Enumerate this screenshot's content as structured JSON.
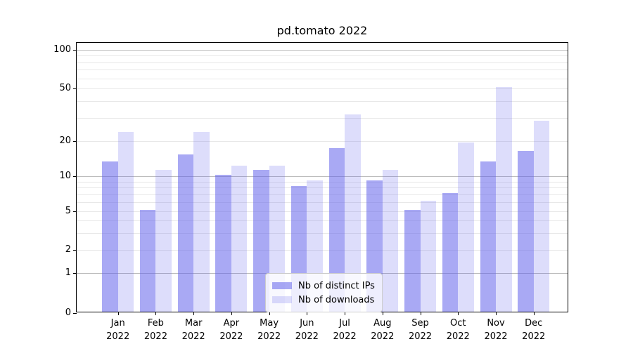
{
  "figure": {
    "background": "#ffffff"
  },
  "chart_data": {
    "type": "bar",
    "title": "pd.tomato 2022",
    "categories": [
      "Jan",
      "Feb",
      "Mar",
      "Apr",
      "May",
      "Jun",
      "Jul",
      "Aug",
      "Sep",
      "Oct",
      "Nov",
      "Dec"
    ],
    "category_year": "2022",
    "series": [
      {
        "name": "Nb of distinct IPs",
        "fill": "rgba(98,98,235,0.55)",
        "solid_color": "#a9a9f1",
        "values": [
          13,
          5,
          15,
          10,
          11,
          8,
          17,
          9,
          5,
          7,
          13,
          16
        ]
      },
      {
        "name": "Nb of downloads",
        "fill": "rgba(98,98,235,0.22)",
        "solid_color": "#dcdcf8",
        "values": [
          23,
          11,
          23,
          12,
          12,
          9,
          31,
          11,
          6,
          19,
          50,
          28
        ]
      }
    ],
    "xlabel": "",
    "ylabel": "",
    "yscale": "symlog",
    "ylim": [
      0,
      100
    ],
    "yticks": [
      0,
      1,
      2,
      5,
      10,
      20,
      50,
      100
    ],
    "major_gridlines": [
      1,
      10,
      100
    ],
    "minor_gridlines": [
      2,
      3,
      4,
      5,
      6,
      7,
      8,
      9,
      20,
      30,
      40,
      50,
      60,
      70,
      80,
      90
    ],
    "grid": "on",
    "grid_color_major": "#bcbcbc",
    "grid_color_minor": "#e8e8e8",
    "legend_position": "lower center"
  }
}
